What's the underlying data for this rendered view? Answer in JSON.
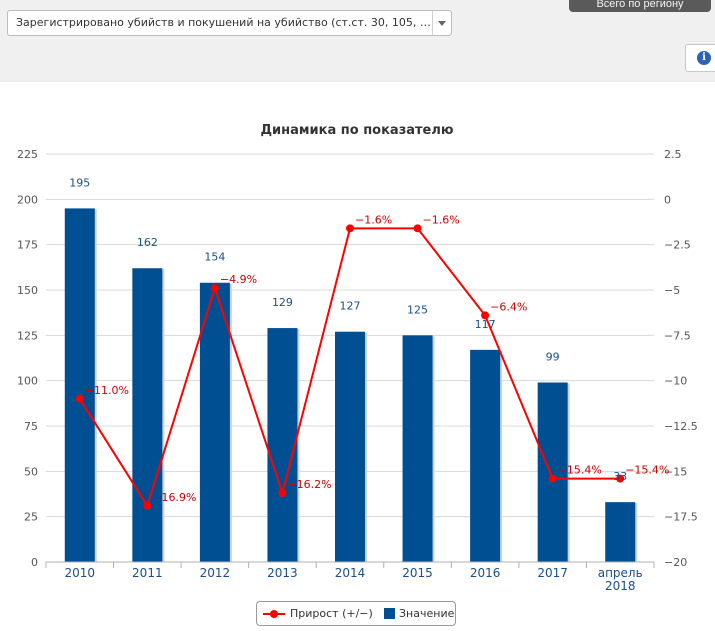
{
  "header": {
    "indicator_select_value": "Зарегистрировано убийств и покушений на убийство (ст.ст. 30, 105, 1...",
    "region_button_label": "Всего по региону",
    "info_icon": "info-icon"
  },
  "chart_data": {
    "type": "bar+line",
    "title": "Динамика по показателю",
    "categories": [
      "2010",
      "2011",
      "2012",
      "2013",
      "2014",
      "2015",
      "2016",
      "2017",
      "апрель 2018"
    ],
    "series": [
      {
        "name": "Значение",
        "type": "bar",
        "axis": "left",
        "color": "#004f93",
        "values": [
          195,
          162,
          154,
          129,
          127,
          125,
          117,
          99,
          33
        ],
        "labels": [
          "195",
          "162",
          "154",
          "129",
          "127",
          "125",
          "117",
          "99",
          "33"
        ]
      },
      {
        "name": "Прирост (+/−)",
        "type": "line",
        "axis": "right",
        "color": "#ff0000",
        "values": [
          -11.0,
          -16.9,
          -4.9,
          -16.2,
          -1.6,
          -1.6,
          -6.4,
          -15.4,
          -15.4
        ],
        "labels": [
          "−11.0%",
          "−16.9%",
          "−4.9%",
          "−16.2%",
          "−1.6%",
          "−1.6%",
          "−6.4%",
          "−15.4%",
          "−15.4%"
        ]
      }
    ],
    "left_axis": {
      "min": 0,
      "max": 225,
      "ticks": [
        "0",
        "25",
        "50",
        "75",
        "100",
        "125",
        "150",
        "175",
        "200",
        "225"
      ]
    },
    "right_axis": {
      "min": -20,
      "max": 2.5,
      "ticks": [
        "−20",
        "−17.5",
        "−15",
        "−12.5",
        "−10",
        "−7.5",
        "−5",
        "−2.5",
        "0",
        "2.5"
      ]
    },
    "grid": true,
    "legend_position": "bottom"
  }
}
